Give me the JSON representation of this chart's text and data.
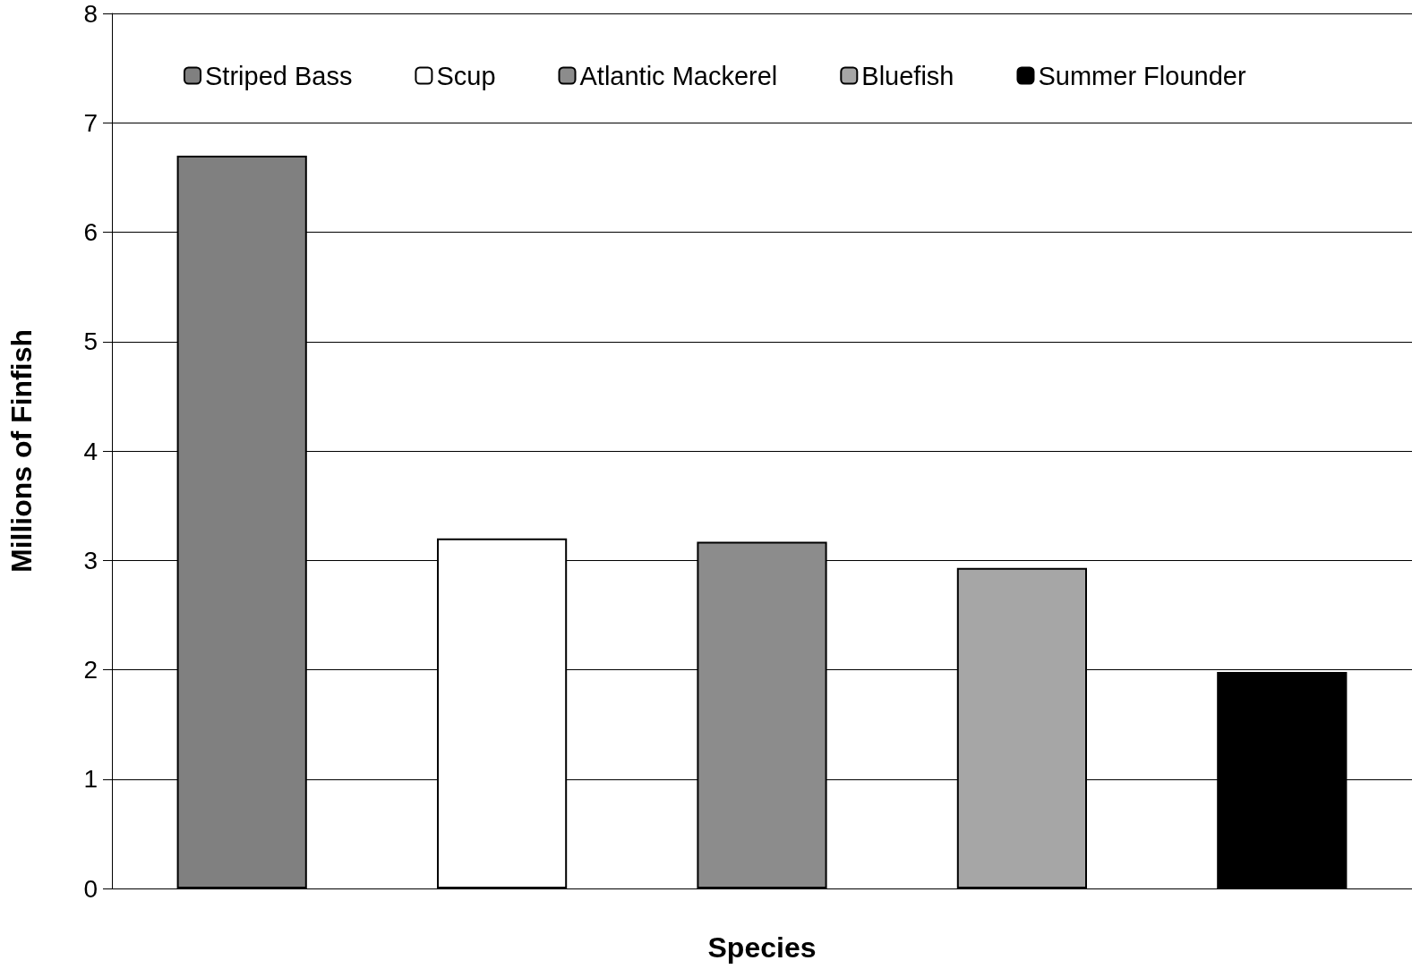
{
  "chart_data": {
    "type": "bar",
    "xlabel": "Species",
    "ylabel": "Millions of Finfish",
    "categories": [
      null,
      null,
      null,
      null,
      null
    ],
    "series": [
      {
        "name": "Striped Bass",
        "color": "#808080",
        "values": [
          6.7,
          null,
          null,
          null,
          null
        ]
      },
      {
        "name": "Scup",
        "color": "#ffffff",
        "values": [
          null,
          3.2,
          null,
          null,
          null
        ]
      },
      {
        "name": "Atlantic Mackerel",
        "color": "#8c8c8c",
        "values": [
          null,
          null,
          3.17,
          null,
          null
        ]
      },
      {
        "name": "Bluefish",
        "color": "#a6a6a6",
        "values": [
          null,
          null,
          null,
          2.93,
          null
        ]
      },
      {
        "name": "Summer Flounder",
        "color": "#000000",
        "values": [
          null,
          null,
          null,
          null,
          1.98
        ]
      }
    ],
    "ylim": [
      0,
      8
    ],
    "yticks": [
      0,
      1,
      2,
      3,
      4,
      5,
      6,
      7,
      8
    ],
    "grid": "y",
    "legend": "top"
  }
}
